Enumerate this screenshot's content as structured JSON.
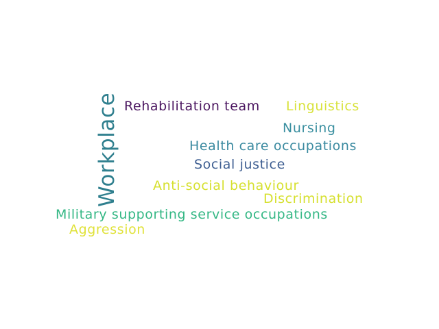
{
  "word_cloud": {
    "words": [
      {
        "text": "Workplace",
        "color": "#2f7f8e"
      },
      {
        "text": "Rehabilitation team",
        "color": "#4b1660"
      },
      {
        "text": "Linguistics",
        "color": "#d8e23a"
      },
      {
        "text": "Nursing",
        "color": "#3a8fa0"
      },
      {
        "text": "Health care occupations",
        "color": "#3b8aa0"
      },
      {
        "text": "Social justice",
        "color": "#3f5f92"
      },
      {
        "text": "Anti-social behaviour",
        "color": "#d6e02f"
      },
      {
        "text": "Discrimination",
        "color": "#d6e02f"
      },
      {
        "text": "Military supporting service occupations",
        "color": "#33b784"
      },
      {
        "text": "Aggression",
        "color": "#e0e23a"
      }
    ]
  }
}
